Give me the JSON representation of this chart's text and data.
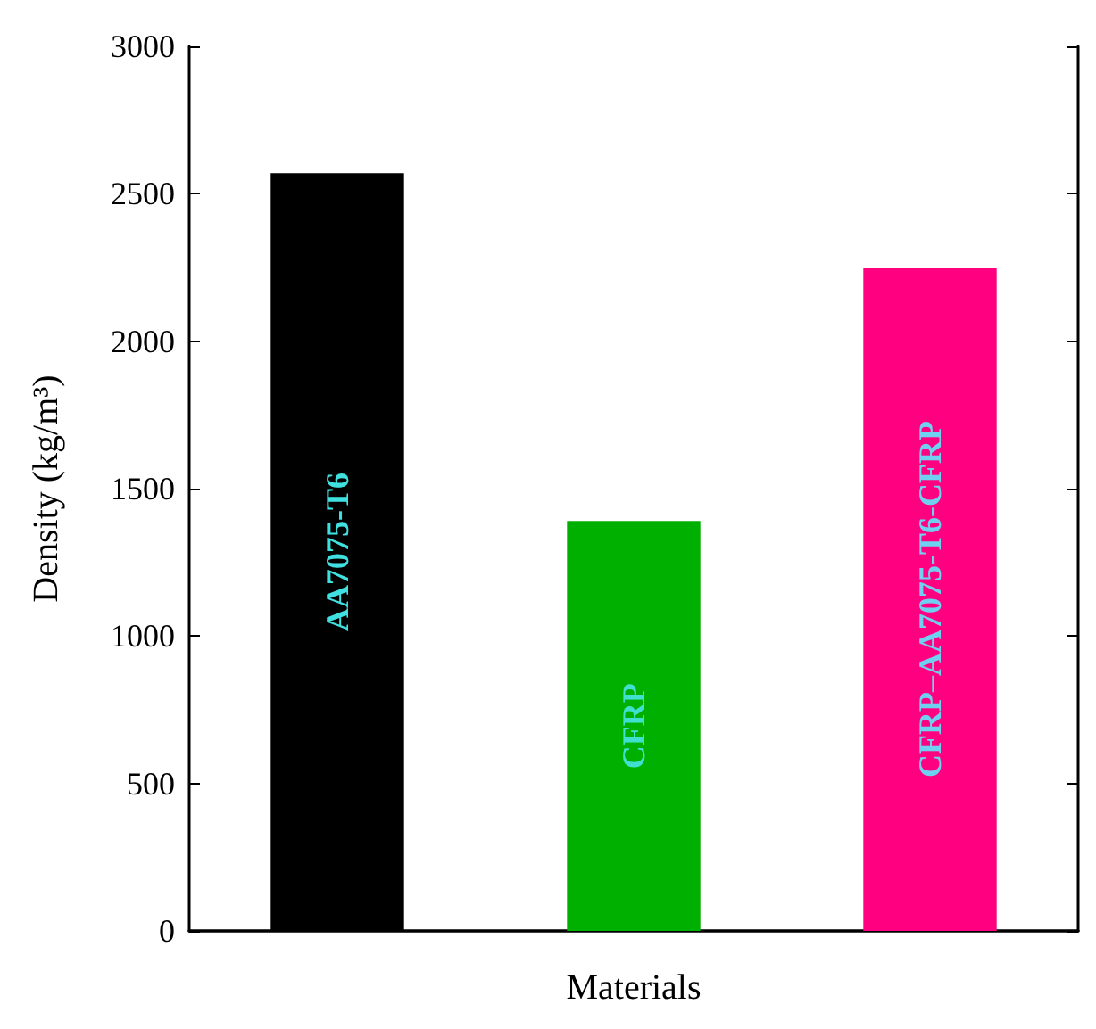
{
  "chart_data": {
    "type": "bar",
    "xlabel": "Materials",
    "ylabel": "Density (kg/m³)",
    "categories": [
      "AA7075-T6",
      "CFRP",
      "CFRP–AA7075-T6-CFRP"
    ],
    "values": [
      2570,
      1390,
      2250
    ],
    "colors": [
      "#000000",
      "#00b000",
      "#ff0080"
    ],
    "ylim": [
      0,
      3000
    ],
    "yticks": [
      0,
      500,
      1000,
      1500,
      2000,
      2500,
      3000
    ],
    "grid": false
  }
}
